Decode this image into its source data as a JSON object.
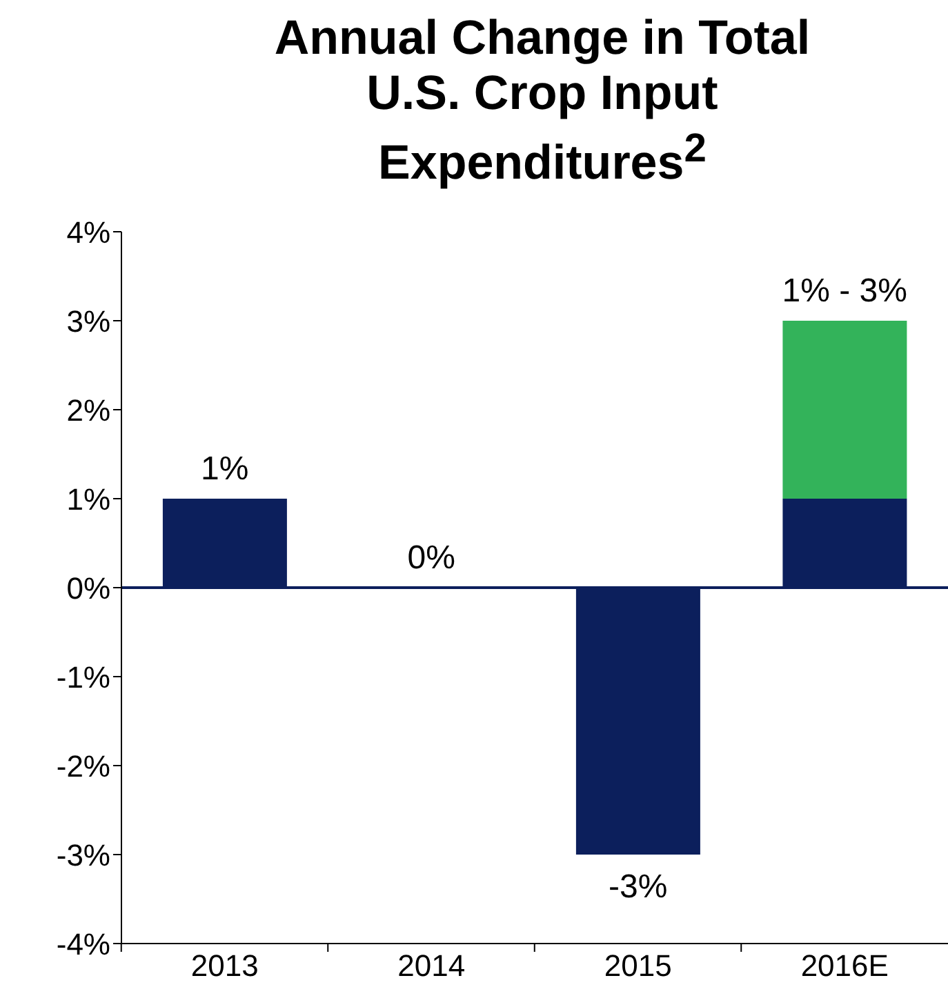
{
  "chart_data": {
    "type": "bar",
    "title": "Annual Change in Total U.S. Crop Input Expenditures$^{2}$",
    "categories": [
      "2013",
      "2014",
      "2015",
      "2016E"
    ],
    "stacked": true,
    "series": [
      {
        "color": "#0c1f5c",
        "values": [
          1,
          0,
          -3,
          1
        ],
        "value_labels": [
          "1%",
          "0%",
          "-3%",
          null
        ]
      },
      {
        "color": "#33b35a",
        "values": [
          null,
          null,
          null,
          2
        ]
      }
    ],
    "annotations": [
      {
        "text": "1% - 3%",
        "x": "2016E",
        "y": 3
      }
    ],
    "ylim": [
      -4,
      4
    ],
    "yticks": [
      {
        "value": -4,
        "label": "-4%"
      },
      {
        "value": -3,
        "label": "-3%"
      },
      {
        "value": -2,
        "label": "-2%"
      },
      {
        "value": -1,
        "label": "-1%"
      },
      {
        "value": 0,
        "label": "0%"
      },
      {
        "value": 1,
        "label": "1%"
      },
      {
        "value": 2,
        "label": "2%"
      },
      {
        "value": 3,
        "label": "3%"
      },
      {
        "value": 4,
        "label": "4%"
      }
    ],
    "grid": false,
    "legend": false
  }
}
